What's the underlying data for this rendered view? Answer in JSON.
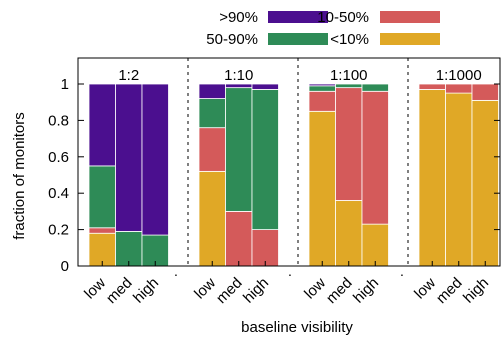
{
  "chart_data": {
    "type": "bar",
    "stacked": true,
    "xlabel": "baseline visibility",
    "ylabel": "fraction of monitors",
    "ylim": [
      0,
      1
    ],
    "yticks": [
      "0",
      "0.2",
      "0.4",
      "0.6",
      "0.8",
      "1"
    ],
    "ytick_values": [
      0,
      0.2,
      0.4,
      0.6,
      0.8,
      1
    ],
    "grid": false,
    "legend_position": "top",
    "legend": [
      {
        "name": ">90%",
        "color": "#4b0f8f"
      },
      {
        "name": "10-50%",
        "color": "#d45a5a"
      },
      {
        "name": "50-90%",
        "color": "#2e8b57"
      },
      {
        "name": "<10%",
        "color": "#e0a826"
      }
    ],
    "categories": [
      "low",
      "med",
      "high"
    ],
    "separator_label": ".",
    "groups": [
      {
        "label": "1:2",
        "bars": [
          {
            "<10%": 0.18,
            "10-50%": 0.03,
            "50-90%": 0.34,
            ">90%": 0.45
          },
          {
            "<10%": 0.0,
            "10-50%": 0.0,
            "50-90%": 0.19,
            ">90%": 0.81
          },
          {
            "<10%": 0.0,
            "10-50%": 0.0,
            "50-90%": 0.17,
            ">90%": 0.83
          }
        ]
      },
      {
        "label": "1:10",
        "bars": [
          {
            "<10%": 0.52,
            "10-50%": 0.24,
            "50-90%": 0.16,
            ">90%": 0.08
          },
          {
            "<10%": 0.0,
            "10-50%": 0.3,
            "50-90%": 0.68,
            ">90%": 0.02
          },
          {
            "<10%": 0.0,
            "10-50%": 0.2,
            "50-90%": 0.77,
            ">90%": 0.03
          }
        ]
      },
      {
        "label": "1:100",
        "bars": [
          {
            "<10%": 0.85,
            "10-50%": 0.11,
            "50-90%": 0.03,
            ">90%": 0.01
          },
          {
            "<10%": 0.36,
            "10-50%": 0.62,
            "50-90%": 0.02,
            ">90%": 0.0
          },
          {
            "<10%": 0.23,
            "10-50%": 0.73,
            "50-90%": 0.04,
            ">90%": 0.0
          }
        ]
      },
      {
        "label": "1:1000",
        "bars": [
          {
            "<10%": 0.97,
            "10-50%": 0.03,
            "50-90%": 0.0,
            ">90%": 0.0
          },
          {
            "<10%": 0.95,
            "10-50%": 0.05,
            "50-90%": 0.0,
            ">90%": 0.0
          },
          {
            "<10%": 0.91,
            "10-50%": 0.09,
            "50-90%": 0.0,
            ">90%": 0.0
          }
        ]
      }
    ]
  }
}
